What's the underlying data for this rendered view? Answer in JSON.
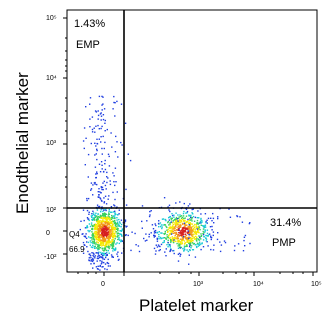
{
  "chart_data": {
    "type": "scatter",
    "title": "",
    "xlabel": "Platelet marker",
    "ylabel": "Enodthelial marker",
    "x_scale": "biexponential",
    "y_scale": "biexponential",
    "x_tick_labels": [
      "0",
      "10³",
      "10⁴",
      "10⁵"
    ],
    "y_tick_labels": [
      "10⁵",
      "10⁴",
      "10³",
      "10²",
      "0",
      "-10²"
    ],
    "gate": {
      "x": 100,
      "y": 100
    },
    "quadrants": [
      {
        "id": "Q1",
        "pct_label": "1.43%",
        "name": "EMP"
      },
      {
        "id": "Q3",
        "pct_label": "31.4%",
        "name": "PMP"
      },
      {
        "id": "Q4",
        "pct_label": "66.9",
        "name": "Q4"
      }
    ],
    "populations": [
      {
        "name": "Q4 cluster",
        "center_x": 0,
        "center_y": 0,
        "count": 900
      },
      {
        "name": "PMP cluster",
        "center_x": 600,
        "center_y": 0,
        "count": 700
      },
      {
        "name": "scatter",
        "center_x": 0,
        "center_y": 1000,
        "count": 160
      }
    ]
  }
}
